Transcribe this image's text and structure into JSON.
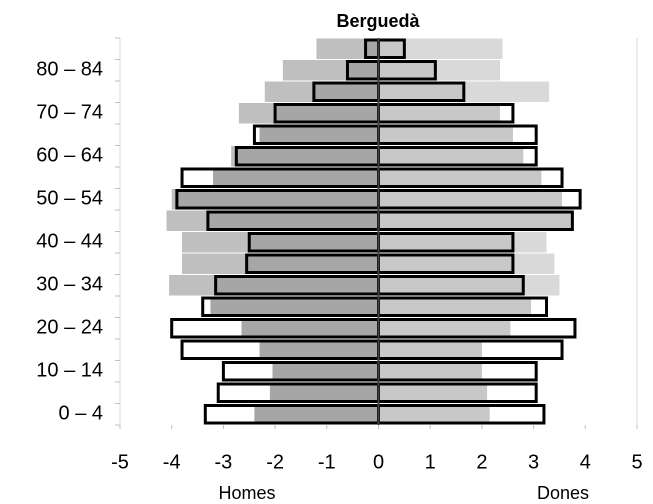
{
  "chart_data": {
    "type": "bar",
    "orientation": "horizontal",
    "title": "Berguedà",
    "x_labels": [
      "Homes",
      "Dones"
    ],
    "categories": [
      "0 – 4",
      null,
      "10 – 14",
      null,
      "20 – 24",
      null,
      "30 – 34",
      null,
      "40 – 44",
      null,
      "50 – 54",
      null,
      "60 – 64",
      null,
      "70 – 74",
      null,
      "80 – 84",
      null
    ],
    "series": [
      {
        "style": "filled",
        "color": "#bfbfbf",
        "overlap_color": "#a6a6a6",
        "values": [
          -2.4,
          -2.1,
          -2.05,
          -2.3,
          -2.65,
          -3.25,
          -4.05,
          -3.8,
          -3.8,
          -4.1,
          -4.0,
          -3.2,
          -2.85,
          -2.3,
          -2.7,
          -2.2,
          -1.85,
          -1.2
        ]
      },
      {
        "style": "filled",
        "color": "#d9d9d9",
        "overlap_color": "#c8c8c8",
        "values": [
          2.15,
          2.1,
          2.0,
          2.0,
          2.55,
          2.95,
          3.5,
          3.4,
          3.25,
          3.75,
          3.55,
          3.15,
          2.8,
          2.6,
          2.35,
          3.3,
          2.35,
          2.4
        ]
      },
      {
        "style": "outline",
        "color": "#000000",
        "values": [
          -3.35,
          -3.1,
          -3.0,
          -3.8,
          -4.0,
          -3.4,
          -3.15,
          -2.55,
          -2.5,
          -3.3,
          -3.9,
          -3.8,
          -2.75,
          -2.4,
          -2.0,
          -1.25,
          -0.6,
          -0.25
        ]
      },
      {
        "style": "outline",
        "color": "#000000",
        "values": [
          3.2,
          3.05,
          3.05,
          3.55,
          3.8,
          3.25,
          2.8,
          2.6,
          2.6,
          3.75,
          3.9,
          3.55,
          3.05,
          3.05,
          2.6,
          1.65,
          1.1,
          0.5
        ]
      }
    ],
    "xlim": [
      -5,
      5
    ],
    "xticks": [
      -5,
      -4,
      -3,
      -2,
      -1,
      0,
      1,
      2,
      3,
      4,
      5
    ]
  }
}
